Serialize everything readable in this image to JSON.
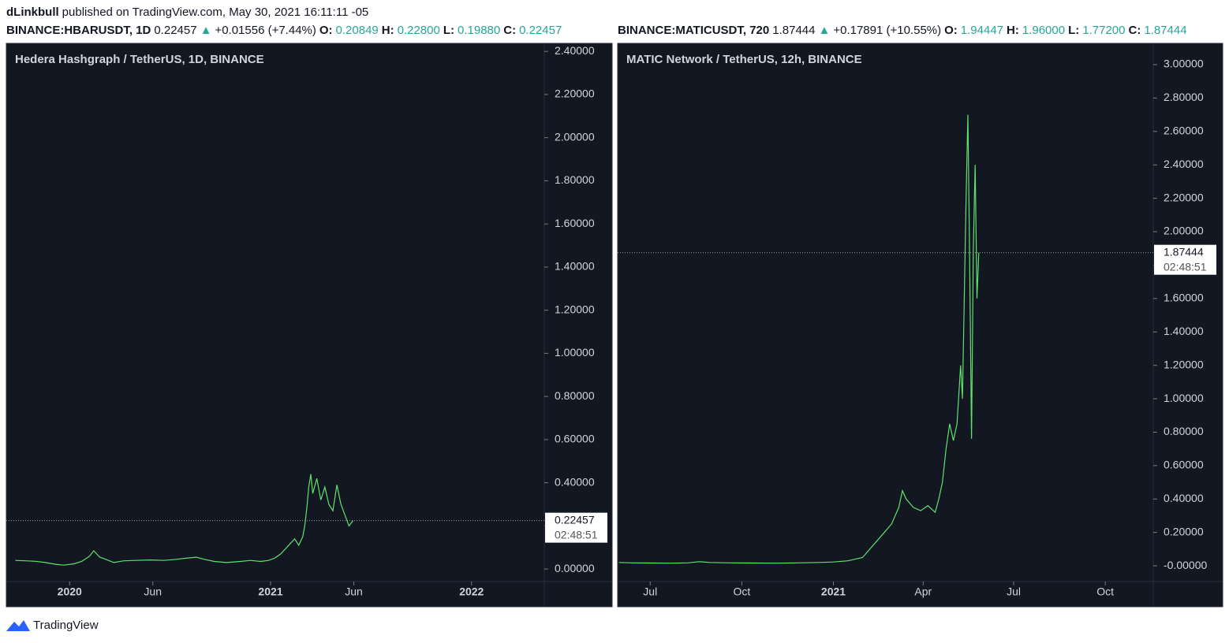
{
  "header": {
    "publisher": "dLinkbull",
    "published": "published on TradingView.com, May 30, 2021 16:11:11 -05"
  },
  "chart_data": [
    {
      "type": "line",
      "symbol": "BINANCE:HBARUSDT, 1D",
      "last_text": "0.22457",
      "arrow": "▲",
      "change": "+0.01556 (+7.44%)",
      "ohlc": [
        {
          "label": "O:",
          "value": "0.20849"
        },
        {
          "label": "H:",
          "value": "0.22800"
        },
        {
          "label": "L:",
          "value": "0.19880"
        },
        {
          "label": "C:",
          "value": "0.22457"
        }
      ],
      "title": "Hedera Hashgraph / TetherUS, 1D, BINANCE",
      "color": "#5ee36b",
      "x": [
        2019.73,
        2019.78,
        2019.83,
        2019.88,
        2019.93,
        2019.97,
        2020.02,
        2020.06,
        2020.1,
        2020.12,
        2020.15,
        2020.18,
        2020.22,
        2020.27,
        2020.33,
        2020.4,
        2020.47,
        2020.53,
        2020.58,
        2020.63,
        2020.67,
        2020.72,
        2020.78,
        2020.85,
        2020.9,
        2020.95,
        2020.99,
        2021.02,
        2021.05,
        2021.08,
        2021.1,
        2021.12,
        2021.14,
        2021.16,
        2021.17,
        2021.18,
        2021.19,
        2021.2,
        2021.21,
        2021.23,
        2021.25,
        2021.27,
        2021.29,
        2021.31,
        2021.33,
        2021.35,
        2021.37,
        2021.39,
        2021.41
      ],
      "values": [
        0.04,
        0.038,
        0.036,
        0.03,
        0.022,
        0.018,
        0.024,
        0.035,
        0.06,
        0.085,
        0.055,
        0.045,
        0.03,
        0.038,
        0.04,
        0.042,
        0.04,
        0.045,
        0.05,
        0.055,
        0.045,
        0.035,
        0.03,
        0.035,
        0.04,
        0.035,
        0.04,
        0.05,
        0.07,
        0.1,
        0.12,
        0.14,
        0.11,
        0.15,
        0.2,
        0.28,
        0.38,
        0.44,
        0.35,
        0.42,
        0.32,
        0.38,
        0.3,
        0.27,
        0.39,
        0.3,
        0.25,
        0.2,
        0.22457
      ],
      "xlim": [
        2019.685,
        2022.362
      ],
      "xticks": [
        {
          "value": 2020.0,
          "label": "2020"
        },
        {
          "value": 2020.414,
          "label": "Jun"
        },
        {
          "value": 2021.0,
          "label": "2021"
        },
        {
          "value": 2021.414,
          "label": "Jun"
        },
        {
          "value": 2022.0,
          "label": "2022"
        }
      ],
      "ylim": [
        -0.058,
        2.43
      ],
      "yticks": [
        {
          "value": 0,
          "label": "0.00000"
        },
        {
          "value": 0.2,
          "label": "0.20000"
        },
        {
          "value": 0.4,
          "label": "0.40000"
        },
        {
          "value": 0.6,
          "label": "0.60000"
        },
        {
          "value": 0.8,
          "label": "0.80000"
        },
        {
          "value": 1.0,
          "label": "1.00000"
        },
        {
          "value": 1.2,
          "label": "1.20000"
        },
        {
          "value": 1.4,
          "label": "1.40000"
        },
        {
          "value": 1.6,
          "label": "1.60000"
        },
        {
          "value": 1.8,
          "label": "1.80000"
        },
        {
          "value": 2.0,
          "label": "2.00000"
        },
        {
          "value": 2.2,
          "label": "2.20000"
        },
        {
          "value": 2.4,
          "label": "2.40000"
        }
      ],
      "last_price": 0.22457,
      "countdown": "02:48:51"
    },
    {
      "type": "line",
      "symbol": "BINANCE:MATICUSDT, 720",
      "last_text": "1.87444",
      "arrow": "▲",
      "change": "+0.17891 (+10.55%)",
      "ohlc": [
        {
          "label": "O:",
          "value": "1.94447"
        },
        {
          "label": "H:",
          "value": "1.96000"
        },
        {
          "label": "L:",
          "value": "1.77200"
        },
        {
          "label": "C:",
          "value": "1.87444"
        }
      ],
      "title": "MATIC Network / TetherUS, 12h, BINANCE",
      "color": "#5ee36b",
      "x": [
        2020.41,
        2020.45,
        2020.5,
        2020.55,
        2020.6,
        2020.63,
        2020.66,
        2020.72,
        2020.78,
        2020.84,
        2020.9,
        2020.96,
        2021.0,
        2021.04,
        2021.08,
        2021.1,
        2021.12,
        2021.14,
        2021.16,
        2021.18,
        2021.19,
        2021.2,
        2021.22,
        2021.24,
        2021.26,
        2021.28,
        2021.29,
        2021.3,
        2021.31,
        2021.32,
        2021.33,
        2021.34,
        2021.35,
        2021.355,
        2021.36,
        2021.365,
        2021.37,
        2021.375,
        2021.38,
        2021.385,
        2021.39,
        2021.395,
        2021.4
      ],
      "values": [
        0.02,
        0.018,
        0.017,
        0.016,
        0.018,
        0.025,
        0.02,
        0.018,
        0.017,
        0.016,
        0.018,
        0.02,
        0.023,
        0.03,
        0.05,
        0.1,
        0.15,
        0.2,
        0.25,
        0.35,
        0.45,
        0.4,
        0.35,
        0.33,
        0.36,
        0.32,
        0.4,
        0.5,
        0.7,
        0.85,
        0.75,
        0.85,
        1.2,
        1.0,
        1.6,
        2.2,
        2.7,
        1.8,
        0.76,
        1.9,
        2.4,
        1.6,
        1.87444
      ],
      "xlim": [
        2020.4065,
        2021.88
      ],
      "xticks": [
        {
          "value": 2020.496,
          "label": "Jul"
        },
        {
          "value": 2020.748,
          "label": "Oct"
        },
        {
          "value": 2021.0,
          "label": "2021"
        },
        {
          "value": 2021.247,
          "label": "Apr"
        },
        {
          "value": 2021.496,
          "label": "Jul"
        },
        {
          "value": 2021.748,
          "label": "Oct"
        }
      ],
      "ylim": [
        -0.094,
        3.118
      ],
      "yticks": [
        {
          "value": 0,
          "label": "-0.00000"
        },
        {
          "value": 0.2,
          "label": "0.20000"
        },
        {
          "value": 0.4,
          "label": "0.40000"
        },
        {
          "value": 0.6,
          "label": "0.60000"
        },
        {
          "value": 0.8,
          "label": "0.80000"
        },
        {
          "value": 1.0,
          "label": "1.00000"
        },
        {
          "value": 1.2,
          "label": "1.20000"
        },
        {
          "value": 1.4,
          "label": "1.40000"
        },
        {
          "value": 1.6,
          "label": "1.60000"
        },
        {
          "value": 1.8,
          "label": "1.80000"
        },
        {
          "value": 2.0,
          "label": "2.00000"
        },
        {
          "value": 2.2,
          "label": "2.20000"
        },
        {
          "value": 2.4,
          "label": "2.40000"
        },
        {
          "value": 2.6,
          "label": "2.60000"
        },
        {
          "value": 2.8,
          "label": "2.80000"
        },
        {
          "value": 3.0,
          "label": "3.00000"
        }
      ],
      "last_price": 1.87444,
      "countdown": "02:48:51"
    }
  ],
  "footer": {
    "brand": "TradingView"
  }
}
